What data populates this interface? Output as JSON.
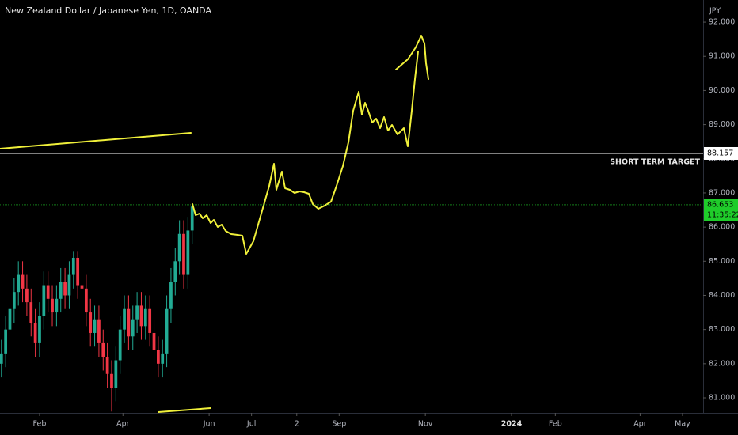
{
  "chart_data": {
    "type": "candlestick",
    "title": "New Zealand Dollar / Japanese Yen, 1D, OANDA",
    "currency": "JPY",
    "up_color": "#22ab94",
    "down_color": "#f23645",
    "x": [
      4,
      7,
      10,
      13,
      16,
      19,
      22,
      25,
      28,
      31,
      34,
      37,
      40,
      43,
      46,
      49,
      52,
      55,
      58,
      61,
      64,
      67,
      70,
      73,
      76,
      79,
      82,
      85,
      88,
      91,
      94,
      97,
      100,
      103,
      106,
      109,
      112,
      115,
      118,
      121,
      124,
      127,
      130,
      133,
      136,
      139
    ],
    "open": [
      82.0,
      82.3,
      83.0,
      83.6,
      84.1,
      84.6,
      84.2,
      83.8,
      83.2,
      82.6,
      83.4,
      84.3,
      83.9,
      83.5,
      83.9,
      84.4,
      84.0,
      84.6,
      85.1,
      84.3,
      84.2,
      83.5,
      82.9,
      83.3,
      82.6,
      82.2,
      81.7,
      81.3,
      82.1,
      83.0,
      83.6,
      82.8,
      83.3,
      83.7,
      83.1,
      83.6,
      82.9,
      82.4,
      82.0,
      82.3,
      83.6,
      84.4,
      85.0,
      85.8,
      84.6,
      85.9
    ],
    "high": [
      82.7,
      83.4,
      84.0,
      84.5,
      85.0,
      85.0,
      84.6,
      84.2,
      83.6,
      83.8,
      84.7,
      84.7,
      84.3,
      84.3,
      84.8,
      84.8,
      85.0,
      85.3,
      85.3,
      84.7,
      84.6,
      83.9,
      83.7,
      83.7,
      83.0,
      82.6,
      82.1,
      82.5,
      83.4,
      84.0,
      84.0,
      83.7,
      84.1,
      84.1,
      84.0,
      84.0,
      83.3,
      82.8,
      82.7,
      84.0,
      84.8,
      85.4,
      86.2,
      86.2,
      86.3,
      86.7
    ],
    "low": [
      81.6,
      81.9,
      82.6,
      83.2,
      83.7,
      83.8,
      83.4,
      82.8,
      82.2,
      82.2,
      83.0,
      83.5,
      83.1,
      83.1,
      83.5,
      83.6,
      83.6,
      84.2,
      83.9,
      83.8,
      83.1,
      82.5,
      82.5,
      82.2,
      81.8,
      81.3,
      80.6,
      80.9,
      81.7,
      82.6,
      82.4,
      82.4,
      82.9,
      82.7,
      82.7,
      82.5,
      82.0,
      81.6,
      81.6,
      81.9,
      83.2,
      84.0,
      84.6,
      84.2,
      84.2,
      85.5
    ],
    "close": [
      82.3,
      83.0,
      83.6,
      84.1,
      84.6,
      84.2,
      83.8,
      83.2,
      82.6,
      83.4,
      84.3,
      83.9,
      83.5,
      83.9,
      84.4,
      84.0,
      84.6,
      85.1,
      84.3,
      84.2,
      83.5,
      82.9,
      83.3,
      82.6,
      82.2,
      81.7,
      81.3,
      82.1,
      83.0,
      83.6,
      82.8,
      83.3,
      83.7,
      83.1,
      83.6,
      82.9,
      82.4,
      82.0,
      82.3,
      83.6,
      84.4,
      85.0,
      85.8,
      84.6,
      85.9,
      86.6
    ],
    "xlim": [
      3,
      500.6
    ],
    "xticks": [
      {
        "value": 31,
        "label": "Feb"
      },
      {
        "value": 90,
        "label": "Apr"
      },
      {
        "value": 151,
        "label": "Jun"
      },
      {
        "value": 181,
        "label": "Jul"
      },
      {
        "value": 213,
        "label": "2"
      },
      {
        "value": 243,
        "label": "Sep"
      },
      {
        "value": 304,
        "label": "Nov"
      },
      {
        "value": 365,
        "label": "2024"
      },
      {
        "value": 396,
        "label": "Feb"
      },
      {
        "value": 456,
        "label": "Apr"
      },
      {
        "value": 486,
        "label": "May"
      }
    ],
    "ylim": [
      80.56,
      92.65
    ],
    "yticks": [
      {
        "value": 81,
        "label": "81.000"
      },
      {
        "value": 82,
        "label": "82.000"
      },
      {
        "value": 83,
        "label": "83.000"
      },
      {
        "value": 84,
        "label": "84.000"
      },
      {
        "value": 85,
        "label": "85.000"
      },
      {
        "value": 86,
        "label": "86.000"
      },
      {
        "value": 87,
        "label": "87.000"
      },
      {
        "value": 88,
        "label": "88.000"
      },
      {
        "value": 89,
        "label": "89.000"
      },
      {
        "value": 90,
        "label": "90.000"
      },
      {
        "value": 91,
        "label": "91.000"
      },
      {
        "value": 92,
        "label": "92.000"
      }
    ],
    "target_line": {
      "value": 88.157,
      "label": "SHORT TERM TARGET",
      "color": "#ffffff"
    },
    "last_price": {
      "value": 86.653,
      "countdown": "11:35:22",
      "color": "#1fcc2a"
    }
  }
}
